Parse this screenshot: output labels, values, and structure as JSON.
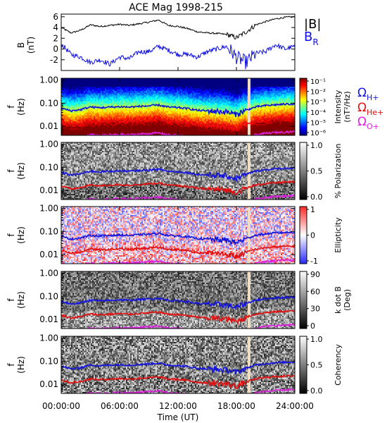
{
  "chart_data": {
    "type": "heatmap",
    "title": "ACE Mag 1998-215",
    "xlabel": "Time (UT)",
    "x_ticks": [
      "00:00:00",
      "06:00:00",
      "12:00:00",
      "18:00:00",
      "24:00:00"
    ],
    "x_range_hours": [
      0,
      24
    ],
    "colors": {
      "axis": "#000000",
      "b_total": "#000000",
      "b_r": "#1010e0",
      "h_plus": "#1414dc",
      "he_plus": "#e01010",
      "o_plus": "#e020e0",
      "gap": "#f0dcc0"
    },
    "line_panel": {
      "ylabel": "B",
      "yunit": "(nT)",
      "y_ticks": [
        "6",
        "4",
        "2",
        "0",
        "-2"
      ],
      "ylim": [
        -4,
        6.5
      ],
      "legend": [
        {
          "text": "|B|",
          "color": "#000000"
        },
        {
          "text": "B",
          "sub": "R",
          "color": "#1010e0"
        }
      ],
      "series": [
        {
          "name": "|B|",
          "x": [
            0,
            1,
            2,
            3,
            4,
            5,
            6,
            7,
            8,
            9,
            10,
            11,
            12,
            13,
            14,
            15,
            16,
            17,
            18,
            19,
            20,
            21,
            22,
            23,
            24
          ],
          "values": [
            4.0,
            3.0,
            3.5,
            4.5,
            4.2,
            4.4,
            4.6,
            4.4,
            4.7,
            5.0,
            5.4,
            4.4,
            4.2,
            3.8,
            3.2,
            3.0,
            2.9,
            2.7,
            2.1,
            3.2,
            4.5,
            5.1,
            5.6,
            5.9,
            6.0
          ]
        },
        {
          "name": "B_R",
          "x": [
            0,
            1,
            2,
            3,
            4,
            5,
            6,
            7,
            8,
            9,
            10,
            11,
            12,
            13,
            14,
            15,
            16,
            17,
            18,
            19,
            20,
            21,
            22,
            23,
            24
          ],
          "values": [
            1.0,
            -1.0,
            -1.5,
            -2.5,
            -2.0,
            -2.8,
            -1.5,
            -1.8,
            -0.5,
            -0.5,
            0.5,
            -0.2,
            -1.0,
            -1.0,
            -1.5,
            -0.5,
            0.0,
            0.5,
            -1.5,
            -2.5,
            -0.8,
            -0.5,
            0.8,
            0.0,
            0.5
          ]
        }
      ]
    },
    "spectral_panels": [
      {
        "name": "intensity",
        "label_lines": [
          "Intensity",
          "(nT²/Hz)"
        ],
        "colorbar_ticks": [
          "10⁻¹",
          "10⁻²",
          "10⁻³",
          "10⁻⁴",
          "10⁻⁵",
          "10⁻⁶"
        ]
      },
      {
        "name": "polarization",
        "label_lines": [
          "% Polarization"
        ],
        "colorbar_ticks": [
          "1.0",
          "0.5",
          "0.0"
        ]
      },
      {
        "name": "ellipticity",
        "label_lines": [
          "Ellipticity"
        ],
        "colorbar_ticks": [
          "1",
          "0",
          "-1"
        ]
      },
      {
        "name": "k-dot-b",
        "label_lines": [
          "k dot B",
          "(Deg)"
        ],
        "colorbar_ticks": [
          "90",
          "60",
          "30",
          "0"
        ]
      },
      {
        "name": "coherency",
        "label_lines": [
          "Coherency"
        ],
        "colorbar_ticks": [
          "1.0",
          "0.5",
          "0.0"
        ]
      }
    ],
    "frequency_axis": {
      "ylabel": "f",
      "yunit": "(Hz)",
      "scale": "log",
      "ticks": [
        "1.00",
        "0.10",
        "0.01"
      ],
      "range": [
        0.004,
        1.2
      ]
    },
    "gyrofrequency_legend": [
      {
        "symbol": "Ω",
        "sub": "H+",
        "color": "#1414dc"
      },
      {
        "symbol": "Ω",
        "sub": "He+",
        "color": "#e01010"
      },
      {
        "symbol": "Ω",
        "sub": "O+",
        "color": "#e020e0"
      }
    ],
    "gyrofrequency_curves": {
      "x": [
        0,
        1,
        2,
        3,
        4,
        5,
        6,
        7,
        8,
        9,
        10,
        11,
        12,
        13,
        14,
        15,
        16,
        17,
        18,
        19,
        20,
        21,
        22,
        23,
        24
      ],
      "H+": [
        0.06,
        0.046,
        0.052,
        0.068,
        0.063,
        0.067,
        0.07,
        0.067,
        0.072,
        0.076,
        0.082,
        0.067,
        0.064,
        0.058,
        0.049,
        0.046,
        0.044,
        0.041,
        0.032,
        0.049,
        0.068,
        0.078,
        0.085,
        0.09,
        0.092
      ],
      "He+": [
        0.015,
        0.0115,
        0.013,
        0.017,
        0.0158,
        0.0168,
        0.0175,
        0.0168,
        0.018,
        0.019,
        0.0205,
        0.0168,
        0.016,
        0.0145,
        0.0122,
        0.0115,
        0.011,
        0.0102,
        0.008,
        0.0122,
        0.017,
        0.0195,
        0.0212,
        0.0225,
        0.023
      ]
    },
    "data_gap_hours": 19.3
  }
}
